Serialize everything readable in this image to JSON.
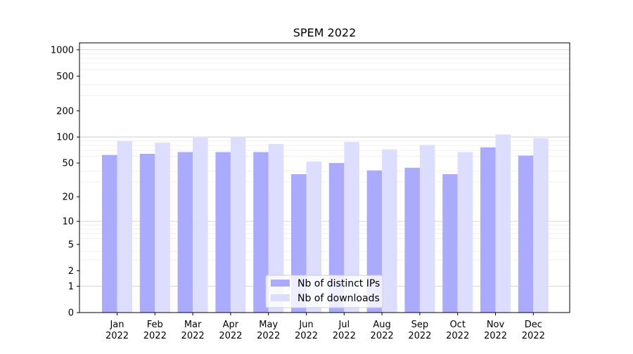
{
  "chart_data": {
    "type": "bar",
    "title": "SPEM 2022",
    "xlabel": "",
    "ylabel": "",
    "yscale": "log(1+y)",
    "ylim": [
      0,
      1200
    ],
    "yticks": [
      0,
      1,
      2,
      5,
      10,
      20,
      50,
      100,
      200,
      500,
      1000
    ],
    "ytick_labels": [
      "0",
      "1",
      "2",
      "5",
      "10",
      "20",
      "50",
      "100",
      "200",
      "500",
      "1000"
    ],
    "grid": true,
    "legend_position": "bottom-center",
    "categories": [
      "Jan\n2022",
      "Feb\n2022",
      "Mar\n2022",
      "Apr\n2022",
      "May\n2022",
      "Jun\n2022",
      "Jul\n2022",
      "Aug\n2022",
      "Sep\n2022",
      "Oct\n2022",
      "Nov\n2022",
      "Dec\n2022"
    ],
    "series": [
      {
        "name": "Nb of distinct IPs",
        "color": "#aaaaff",
        "values": [
          62,
          64,
          67,
          67,
          67,
          37,
          50,
          41,
          44,
          37,
          76,
          61
        ]
      },
      {
        "name": "Nb of downloads",
        "color": "#ddddff",
        "values": [
          90,
          86,
          98,
          100,
          83,
          52,
          88,
          72,
          81,
          67,
          107,
          97
        ]
      }
    ]
  }
}
